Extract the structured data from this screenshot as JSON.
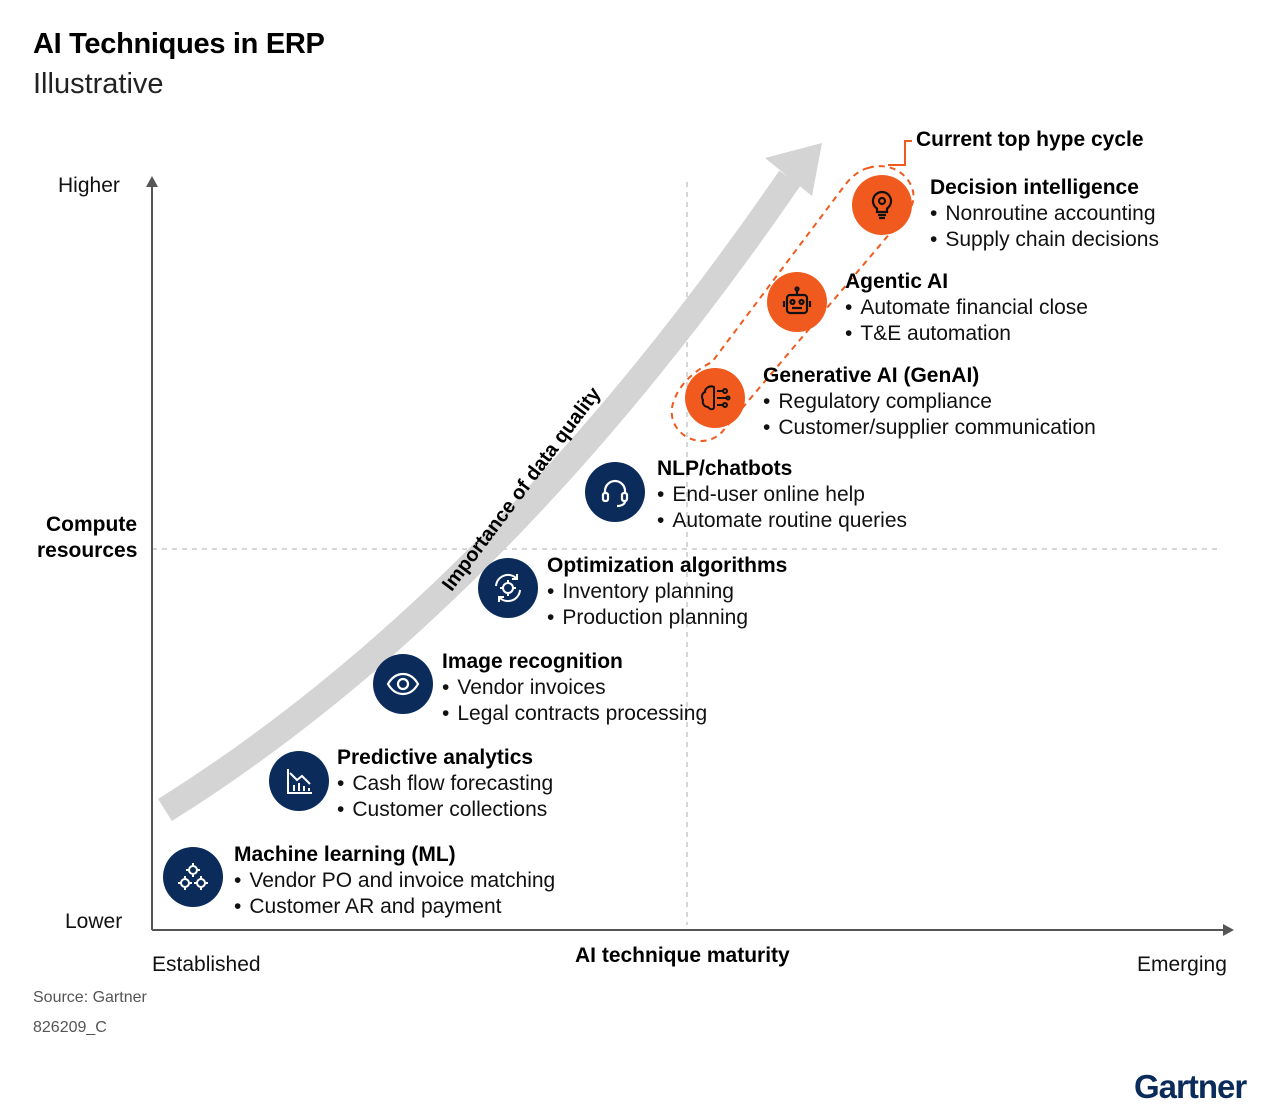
{
  "header": {
    "title": "AI Techniques in ERP",
    "subtitle": "Illustrative"
  },
  "axes": {
    "y_top": "Higher",
    "y_title": [
      "Compute",
      "resources"
    ],
    "y_bottom": "Lower",
    "x_left": "Established",
    "x_title": "AI technique maturity",
    "x_right": "Emerging"
  },
  "arrow_label": "Importance of data quality",
  "hype_label": "Current top hype cycle",
  "techniques": [
    {
      "name": "Machine learning (ML)",
      "bullets": [
        "Vendor PO and invoice matching",
        "Customer AR and payment"
      ],
      "icon": "gears-icon",
      "color": "#0b2c5a"
    },
    {
      "name": "Predictive analytics",
      "bullets": [
        "Cash flow forecasting",
        "Customer collections"
      ],
      "icon": "chart-trend-icon",
      "color": "#0b2c5a"
    },
    {
      "name": "Image recognition",
      "bullets": [
        "Vendor invoices",
        "Legal contracts processing"
      ],
      "icon": "eye-icon",
      "color": "#0b2c5a"
    },
    {
      "name": "Optimization algorithms",
      "bullets": [
        "Inventory planning",
        "Production planning"
      ],
      "icon": "gear-cycle-icon",
      "color": "#0b2c5a"
    },
    {
      "name": "NLP/chatbots",
      "bullets": [
        "End-user online help",
        "Automate routine queries"
      ],
      "icon": "headset-icon",
      "color": "#0b2c5a"
    },
    {
      "name": "Generative AI (GenAI)",
      "bullets": [
        "Regulatory compliance",
        "Customer/supplier communication"
      ],
      "icon": "brain-circuit-icon",
      "color": "#f05a1e"
    },
    {
      "name": "Agentic AI",
      "bullets": [
        "Automate financial close",
        "T&E automation"
      ],
      "icon": "robot-icon",
      "color": "#f05a1e"
    },
    {
      "name": "Decision intelligence",
      "bullets": [
        "Nonroutine accounting",
        "Supply chain decisions"
      ],
      "icon": "lightbulb-icon",
      "color": "#f05a1e"
    }
  ],
  "footer": {
    "source": "Source: Gartner",
    "code": "826209_C",
    "logo": "Gartner"
  }
}
